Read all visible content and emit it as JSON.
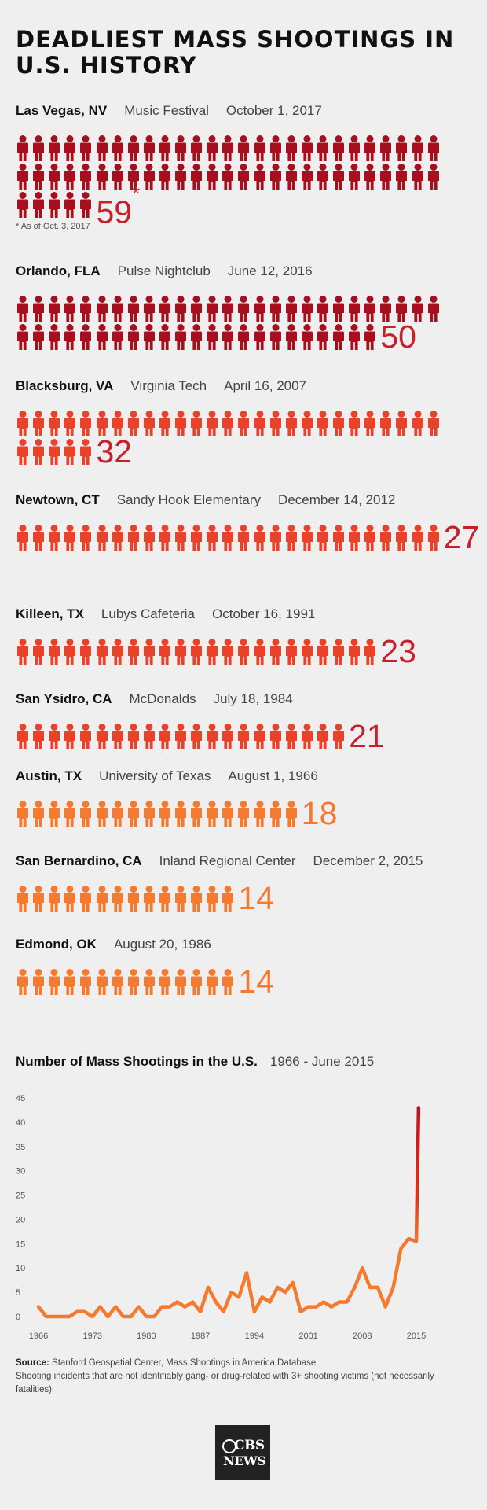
{
  "title": "DEADLIEST MASS SHOOTINGS IN U.S. HISTORY",
  "colors": {
    "dark_red": "#a6101e",
    "red": "#e8432a",
    "orange": "#f47a30",
    "number_red": "#c8202b",
    "line_orange": "#f47a30",
    "line_red": "#b8141e"
  },
  "icon_name": "person-icon",
  "incidents": [
    {
      "city": "Las Vegas, NV",
      "venue": "Music Festival",
      "date": "October 1, 2017",
      "count": 59,
      "count_label": "59",
      "asterisk": "*",
      "note": "* As of Oct. 3, 2017",
      "color": "#a6101e"
    },
    {
      "city": "Orlando, FLA",
      "venue": "Pulse Nightclub",
      "date": "June 12, 2016",
      "count": 50,
      "count_label": "50",
      "color": "#a6101e"
    },
    {
      "city": "Blacksburg, VA",
      "venue": "Virginia Tech",
      "date": "April 16, 2007",
      "count": 32,
      "count_label": "32",
      "color": "#e8432a"
    },
    {
      "city": "Newtown, CT",
      "venue": "Sandy Hook Elementary",
      "date": "December 14, 2012",
      "count": 27,
      "count_label": "27",
      "color": "#e8432a"
    },
    {
      "city": "Killeen, TX",
      "venue": "Lubys Cafeteria",
      "date": "October 16, 1991",
      "count": 23,
      "count_label": "23",
      "color": "#e8432a"
    },
    {
      "city": "San Ysidro, CA",
      "venue": "McDonalds",
      "date": "July 18, 1984",
      "count": 21,
      "count_label": "21",
      "color": "#e8432a"
    },
    {
      "city": "Austin, TX",
      "venue": "University of Texas",
      "date": "August 1, 1966",
      "count": 18,
      "count_label": "18",
      "color": "#f47a30"
    },
    {
      "city": "San Bernardino, CA",
      "venue": "Inland Regional Center",
      "date": "December 2, 2015",
      "count": 14,
      "count_label": "14",
      "color": "#f47a30"
    },
    {
      "city": "Edmond, OK",
      "venue": "",
      "date": "August 20, 1986",
      "count": 14,
      "count_label": "14",
      "color": "#f47a30"
    }
  ],
  "chart_data": {
    "type": "line",
    "title": "Number of Mass Shootings in the U.S.",
    "subtitle": "1966 - June 2015",
    "xlabel": "",
    "ylabel": "",
    "xlim": [
      1966,
      2015
    ],
    "ylim": [
      0,
      45
    ],
    "x_ticks": [
      1966,
      1973,
      1980,
      1987,
      1994,
      2001,
      2008,
      2015
    ],
    "y_ticks": [
      0,
      5,
      10,
      15,
      20,
      25,
      30,
      35,
      40,
      45
    ],
    "grid": false,
    "legend": "none",
    "series": [
      {
        "x": [
          1966,
          1967,
          1968,
          1969,
          1970,
          1971,
          1972,
          1973,
          1974,
          1975,
          1976,
          1977,
          1978,
          1979,
          1980,
          1981,
          1982,
          1983,
          1984,
          1985,
          1986,
          1987,
          1988,
          1989,
          1990,
          1991,
          1992,
          1993,
          1994,
          1995,
          1996,
          1997,
          1998,
          1999,
          2000,
          2001,
          2002,
          2003,
          2004,
          2005,
          2006,
          2007,
          2008,
          2009,
          2010,
          2011,
          2012,
          2013,
          2014,
          2015
        ],
        "y": [
          2,
          0,
          0,
          0,
          0,
          1,
          1,
          0,
          2,
          0,
          2,
          0,
          0,
          2,
          0,
          0,
          2,
          2,
          3,
          2,
          3,
          1,
          6,
          3,
          1,
          5,
          4,
          9,
          1,
          4,
          3,
          6,
          5,
          7,
          1,
          2,
          2,
          3,
          2,
          3,
          3,
          6,
          10,
          6,
          6,
          2,
          6,
          14,
          16,
          15.5
        ],
        "end_x": 2015.3,
        "end_y": 43
      }
    ]
  },
  "source": {
    "label": "Source:",
    "text": "Stanford Geospatial Center, Mass Shootings in America Database",
    "note": "Shooting incidents that are not identifiably gang- or drug-related with 3+ shooting victims (not necessarily fatalities)"
  },
  "logo": {
    "line1": "CBS",
    "line2": "NEWS"
  }
}
